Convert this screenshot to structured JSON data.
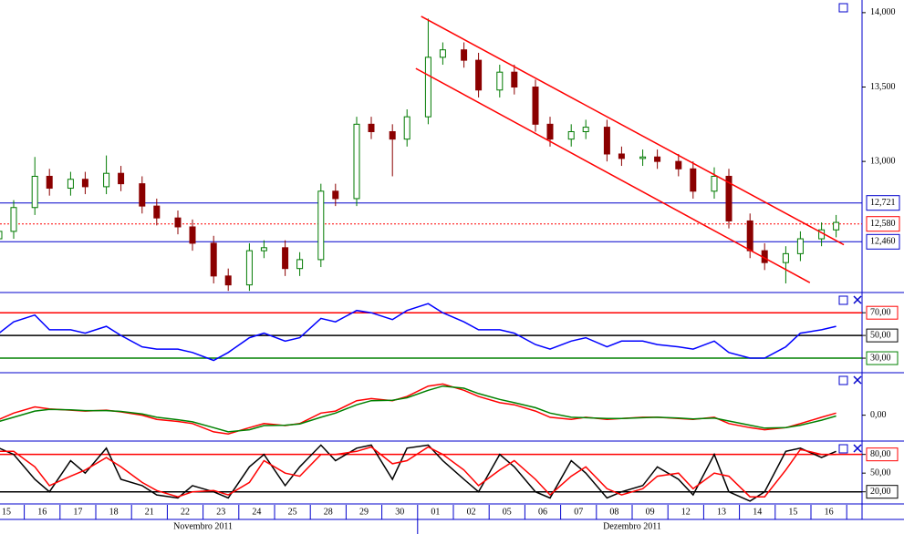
{
  "chart_data": [
    {
      "type": "candlestick",
      "days": [
        "15",
        "16",
        "17",
        "18",
        "21",
        "22",
        "23",
        "24",
        "25",
        "28",
        "29",
        "30",
        "01",
        "02",
        "05",
        "06",
        "07",
        "08",
        "09",
        "12",
        "13",
        "14",
        "15",
        "16"
      ],
      "months": [
        "Novembro 2011",
        "Dezembro 2011"
      ],
      "up_color": "#007a00",
      "down_color": "#8b0000",
      "ylim": [
        12125,
        14085
      ],
      "yticks": [
        {
          "value": 14000,
          "label": "14,000"
        },
        {
          "value": 13500,
          "label": "13,500"
        },
        {
          "value": 13000,
          "label": "13,000"
        }
      ],
      "levels": [
        {
          "value": 12721,
          "label": "12,721",
          "color": "#0000cc",
          "dashed": false
        },
        {
          "value": 12580,
          "label": "12,580",
          "color": "#ff0000",
          "dashed": true
        },
        {
          "value": 12460,
          "label": "12,460",
          "color": "#0000cc",
          "dashed": false
        }
      ],
      "trendlines": [
        {
          "color": "#ff0000",
          "points": [
            [
              11.6,
              13975
            ],
            [
              23.42,
              12440
            ]
          ]
        },
        {
          "color": "#ff0000",
          "points": [
            [
              11.45,
              13625
            ],
            [
              22.47,
              12185
            ]
          ]
        }
      ],
      "open": [
        12480,
        12530,
        12690,
        12900,
        12820,
        12880,
        12830,
        12920,
        12850,
        12700,
        12620,
        12560,
        12450,
        12230,
        12170,
        12400,
        12420,
        12280,
        12340,
        12800,
        12750,
        13250,
        13200,
        13150,
        13300,
        13700,
        13750,
        13680,
        13480,
        13600,
        13500,
        13250,
        13150,
        13200,
        13230,
        13050,
        13020,
        13030,
        13000,
        12950,
        12800,
        12900,
        12600,
        12400,
        12320,
        12380,
        12480,
        12540
      ],
      "high": [
        12580,
        12740,
        13030,
        12950,
        12930,
        12930,
        13040,
        12970,
        12900,
        12750,
        12670,
        12610,
        12500,
        12280,
        12450,
        12470,
        12470,
        12390,
        12850,
        12850,
        13300,
        13300,
        13250,
        13350,
        13960,
        13800,
        13800,
        13730,
        13650,
        13650,
        13550,
        13300,
        13250,
        13280,
        13280,
        13100,
        13080,
        13080,
        13050,
        13000,
        12960,
        12950,
        12650,
        12450,
        12430,
        12530,
        12590,
        12640
      ],
      "low": [
        12430,
        12480,
        12640,
        12770,
        12770,
        12780,
        12780,
        12800,
        12650,
        12570,
        12510,
        12400,
        12180,
        12130,
        12130,
        12350,
        12230,
        12230,
        12290,
        12700,
        12700,
        13150,
        12900,
        13100,
        13250,
        13650,
        13630,
        13430,
        13430,
        13450,
        13200,
        13100,
        13100,
        13150,
        13000,
        12970,
        12970,
        12950,
        12900,
        12750,
        12750,
        12550,
        12350,
        12270,
        12180,
        12330,
        12430,
        12490
      ],
      "close": [
        12530,
        12690,
        12900,
        12820,
        12880,
        12830,
        12920,
        12850,
        12700,
        12620,
        12560,
        12450,
        12230,
        12170,
        12400,
        12420,
        12280,
        12340,
        12800,
        12750,
        13250,
        13200,
        13150,
        13300,
        13700,
        13750,
        13680,
        13480,
        13600,
        13500,
        13250,
        13150,
        13200,
        13230,
        13050,
        13020,
        13030,
        13000,
        12950,
        12800,
        12900,
        12600,
        12400,
        12320,
        12380,
        12480,
        12540,
        12590
      ]
    },
    {
      "type": "line",
      "ylim": [
        18,
        87
      ],
      "yticks": [
        {
          "value": 70,
          "label": "70,00"
        },
        {
          "value": 50,
          "label": "50,00"
        },
        {
          "value": 30,
          "label": "30,00"
        }
      ],
      "tick_colors": [
        "#ff0000",
        "#000000",
        "#008000"
      ],
      "series": [
        {
          "color": "#0000ff",
          "values": [
            52,
            62,
            68,
            55,
            55,
            52,
            58,
            50,
            40,
            38,
            38,
            35,
            28,
            35,
            48,
            52,
            45,
            48,
            65,
            62,
            72,
            70,
            64,
            72,
            78,
            70,
            62,
            55,
            55,
            52,
            42,
            38,
            45,
            48,
            40,
            45,
            45,
            42,
            40,
            38,
            45,
            35,
            30,
            30,
            40,
            52,
            55,
            58
          ]
        }
      ]
    },
    {
      "type": "line",
      "ylim": [
        -60,
        100
      ],
      "yticks": [
        {
          "value": 0,
          "label": "0,00"
        }
      ],
      "series": [
        {
          "color": "#ff0000",
          "values": [
            -10,
            5,
            20,
            15,
            12,
            10,
            12,
            8,
            0,
            -10,
            -15,
            -20,
            -40,
            -45,
            -30,
            -20,
            -25,
            -20,
            5,
            10,
            35,
            40,
            35,
            45,
            70,
            75,
            60,
            45,
            30,
            25,
            10,
            -5,
            -10,
            -5,
            -10,
            -8,
            -5,
            -5,
            -8,
            -10,
            -5,
            -20,
            -30,
            -35,
            -30,
            -20,
            -5,
            5
          ]
        },
        {
          "color": "#008000",
          "values": [
            -15,
            -5,
            10,
            14,
            13,
            11,
            11,
            9,
            3,
            -5,
            -11,
            -16,
            -30,
            -40,
            -35,
            -25,
            -24,
            -21,
            -5,
            5,
            25,
            35,
            36,
            42,
            60,
            70,
            65,
            52,
            38,
            30,
            18,
            5,
            -5,
            -6,
            -8,
            -8,
            -6,
            -5,
            -7,
            -9,
            -7,
            -14,
            -24,
            -31,
            -30,
            -24,
            -12,
            -2
          ]
        }
      ]
    },
    {
      "type": "line",
      "ylim": [
        2,
        100
      ],
      "yticks": [
        {
          "value": 80,
          "label": "80,00"
        },
        {
          "value": 50,
          "label": "50,00"
        },
        {
          "value": 20,
          "label": "20,00"
        }
      ],
      "tick_colors": [
        "#ff0000",
        null,
        "#000000"
      ],
      "series": [
        {
          "color": "#000000",
          "values": [
            90,
            80,
            40,
            20,
            70,
            50,
            90,
            40,
            30,
            15,
            10,
            30,
            20,
            10,
            60,
            80,
            30,
            60,
            95,
            70,
            90,
            95,
            40,
            90,
            95,
            70,
            40,
            20,
            80,
            60,
            20,
            10,
            70,
            50,
            10,
            20,
            30,
            60,
            40,
            15,
            80,
            20,
            5,
            20,
            85,
            90,
            75,
            85
          ]
        },
        {
          "color": "#ff0000",
          "values": [
            85,
            85,
            60,
            30,
            45,
            55,
            75,
            60,
            35,
            22,
            12,
            20,
            22,
            15,
            35,
            70,
            50,
            45,
            80,
            80,
            85,
            92,
            65,
            70,
            92,
            80,
            55,
            30,
            55,
            70,
            40,
            15,
            45,
            60,
            25,
            15,
            25,
            45,
            50,
            25,
            50,
            45,
            12,
            12,
            55,
            88,
            80,
            80
          ]
        }
      ]
    }
  ]
}
